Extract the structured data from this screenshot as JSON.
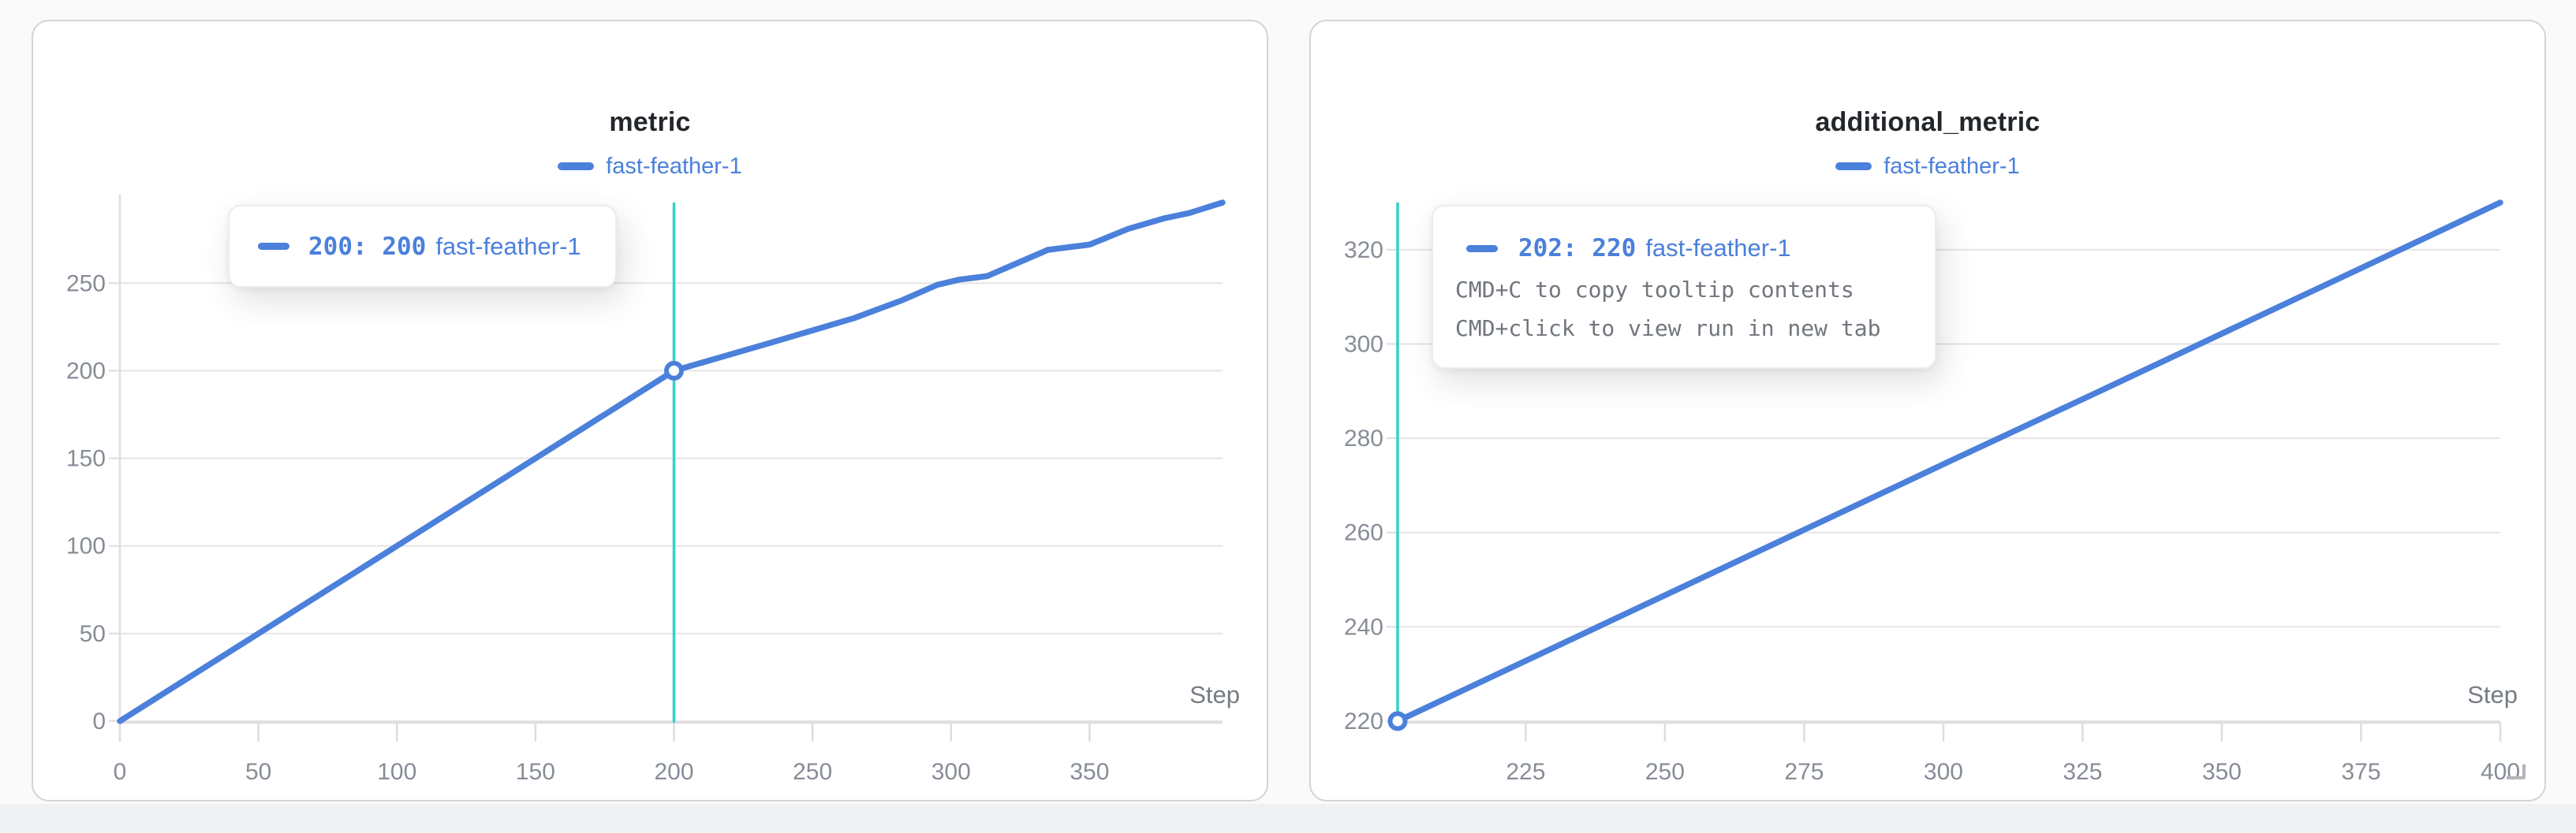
{
  "page": {
    "background": "#fafafa",
    "bottom_strip_color": "#f0f1f2"
  },
  "colors": {
    "run_blue": "#4b80db",
    "crosshair_teal": "#35d2c4",
    "gridline": "#e5e5e7",
    "axis_line": "#dddde0",
    "tick_label": "#878d97",
    "step_label": "#767c85",
    "title_text": "#23272c",
    "hint_text": "#71767e",
    "marker_fill": "#ffffff"
  },
  "panels": [
    {
      "title": "metric",
      "legend": [
        {
          "label": "fast-feather-1",
          "color": "#4b80db"
        }
      ],
      "tooltip": {
        "value_label": "200: 200",
        "run_name": "fast-feather-1",
        "hints": []
      }
    },
    {
      "title": "additional_metric",
      "legend": [
        {
          "label": "fast-feather-1",
          "color": "#4b80db"
        }
      ],
      "tooltip": {
        "value_label": "202: 220",
        "run_name": "fast-feather-1",
        "hints": [
          "CMD+C to copy tooltip contents",
          "CMD+click to view run in new tab"
        ]
      }
    }
  ],
  "chart_data": [
    {
      "type": "line",
      "title": "metric",
      "xlabel": "Step",
      "ylabel": "",
      "xlim": [
        0,
        398
      ],
      "ylim": [
        0,
        296
      ],
      "xticks": [
        0,
        50,
        100,
        150,
        200,
        250,
        300,
        350
      ],
      "yticks": [
        0,
        50,
        100,
        150,
        200,
        250
      ],
      "grid": true,
      "y_axis_line": true,
      "legend_position": "top-center",
      "crosshair_x": 200,
      "highlight_point": [
        200,
        200
      ],
      "series": [
        {
          "name": "fast-feather-1",
          "color": "#4b80db",
          "points": [
            [
              0,
              0
            ],
            [
              25,
              25
            ],
            [
              50,
              50
            ],
            [
              75,
              75
            ],
            [
              100,
              100
            ],
            [
              125,
              125
            ],
            [
              150,
              150
            ],
            [
              175,
              175
            ],
            [
              200,
              200
            ],
            [
              235,
              216
            ],
            [
              265,
              230
            ],
            [
              282,
              240
            ],
            [
              295,
              249
            ],
            [
              303,
              252
            ],
            [
              313,
              254
            ],
            [
              335,
              269
            ],
            [
              350,
              272
            ],
            [
              364,
              281
            ],
            [
              377,
              287
            ],
            [
              386,
              290
            ],
            [
              398,
              296
            ]
          ]
        }
      ]
    },
    {
      "type": "line",
      "title": "additional_metric",
      "xlabel": "Step",
      "ylabel": "",
      "xlim": [
        202,
        400
      ],
      "ylim": [
        220,
        330
      ],
      "xticks": [
        225,
        250,
        275,
        300,
        325,
        350,
        375,
        400
      ],
      "yticks": [
        220,
        240,
        260,
        280,
        300,
        320
      ],
      "grid": true,
      "y_axis_line": false,
      "legend_position": "top-center",
      "crosshair_x": 202,
      "highlight_point": [
        202,
        220
      ],
      "series": [
        {
          "name": "fast-feather-1",
          "color": "#4b80db",
          "points": [
            [
              202,
              220
            ],
            [
              227,
              233.9
            ],
            [
              252,
              247.8
            ],
            [
              277,
              261.7
            ],
            [
              302,
              275.6
            ],
            [
              327,
              289.4
            ],
            [
              352,
              303.3
            ],
            [
              377,
              317.2
            ],
            [
              400,
              330
            ]
          ]
        }
      ]
    }
  ]
}
